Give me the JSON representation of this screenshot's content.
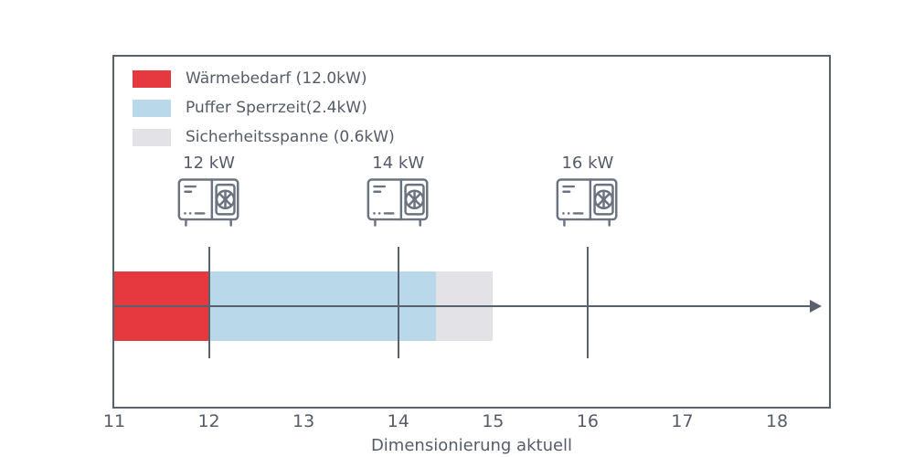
{
  "figure": {
    "background": "#ffffff"
  },
  "colors": {
    "axis": "#59616d",
    "text": "#545c68",
    "icon_stroke": "#6b7380",
    "waermebedarf_red": "#e5383f",
    "puffer_blue": "#b9d9ea",
    "sicherheit_gray": "#e2e2e7"
  },
  "chart_data": {
    "type": "bar",
    "orientation": "horizontal",
    "stacked": true,
    "xlabel": "Dimensionierung aktuell",
    "xlim": [
      11,
      18.55
    ],
    "x_ticks": [
      11,
      12,
      13,
      14,
      15,
      16,
      17,
      18
    ],
    "grid": false,
    "legend_position": "upper-left-inside",
    "series": [
      {
        "name": "Wärmebedarf (12.0kW)",
        "value_kw": 12.0,
        "start": 11,
        "end": 12,
        "color": "#e5383f"
      },
      {
        "name": "Puffer Sperrzeit(2.4kW)",
        "value_kw": 2.4,
        "start": 12,
        "end": 14.4,
        "color": "#b9d9ea"
      },
      {
        "name": "Sicherheitsspanne (0.6kW)",
        "value_kw": 0.6,
        "start": 14.4,
        "end": 15.0,
        "color": "#e2e2e7"
      }
    ],
    "markers": [
      {
        "label": "12 kW",
        "x": 12,
        "icon": "heat-pump-icon"
      },
      {
        "label": "14 kW",
        "x": 14,
        "icon": "heat-pump-icon"
      },
      {
        "label": "16 kW",
        "x": 16,
        "icon": "heat-pump-icon"
      }
    ]
  }
}
